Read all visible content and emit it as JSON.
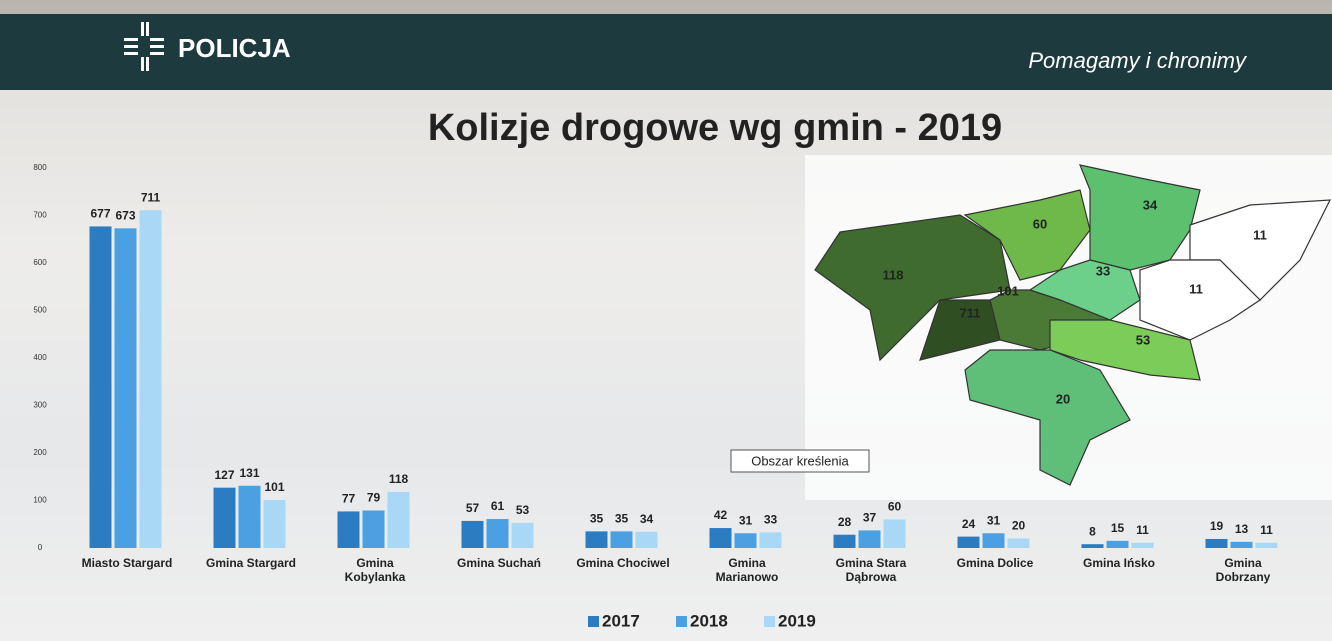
{
  "header": {
    "brand": "POLICJA",
    "slogan": "Pomagamy i chronimy"
  },
  "chart_data": {
    "type": "bar",
    "title": "Kolizje drogowe wg gmin - 2019",
    "categories": [
      "Miasto Stargard",
      "Gmina Stargard",
      "Gmina\nKobylanka",
      "Gmina Suchań",
      "Gmina Chociwel",
      "Gmina\nMarianowo",
      "Gmina Stara\nDąbrowa",
      "Gmina Dolice",
      "Gmina Ińsko",
      "Gmina\nDobrzany"
    ],
    "series": [
      {
        "name": "2017",
        "color": "#2c7cc2",
        "values": [
          677,
          127,
          77,
          57,
          35,
          42,
          28,
          24,
          8,
          19
        ]
      },
      {
        "name": "2018",
        "color": "#4aa0e2",
        "values": [
          673,
          131,
          79,
          61,
          35,
          31,
          37,
          31,
          15,
          13
        ]
      },
      {
        "name": "2019",
        "color": "#a9d7f6",
        "values": [
          711,
          101,
          118,
          53,
          34,
          33,
          60,
          20,
          11,
          11
        ]
      }
    ],
    "ylim": [
      0,
      800
    ],
    "yticks": [
      0,
      100,
      200,
      300,
      400,
      500,
      600,
      700,
      800
    ],
    "legend": "bottom"
  },
  "map": {
    "values": [
      118,
      60,
      34,
      11,
      33,
      11,
      101,
      711,
      53,
      20
    ]
  },
  "tooltip": "Obszar kreślenia"
}
